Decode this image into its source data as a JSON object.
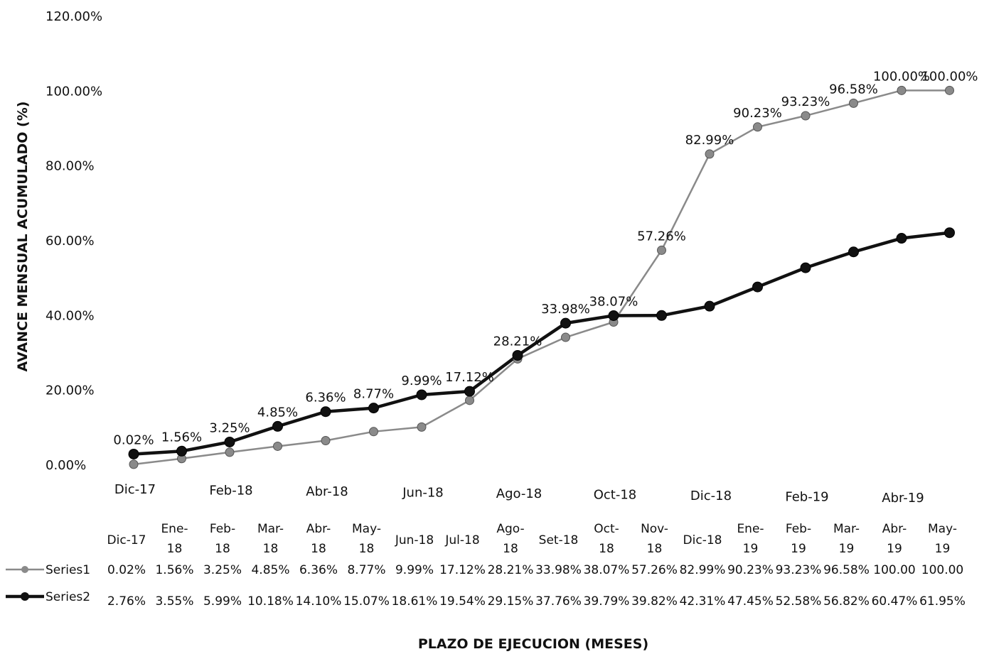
{
  "chart_data": {
    "type": "line",
    "ylabel": "AVANCE MENSUAL ACUMULADO (%)",
    "xlabel": "PLAZO DE EJECUCION (MESES)",
    "ylim": [
      0,
      120
    ],
    "y_ticks": [
      "0.00%",
      "20.00%",
      "40.00%",
      "60.00%",
      "80.00%",
      "100.00%",
      "120.00%"
    ],
    "x_tick_labels": [
      "Dic-17",
      "Feb-18",
      "Abr-18",
      "Jun-18",
      "Ago-18",
      "Oct-18",
      "Dic-18",
      "Feb-19",
      "Abr-19"
    ],
    "categories": [
      "Dic-17",
      "Ene-18",
      "Feb-18",
      "Mar-18",
      "Abr-18",
      "May-18",
      "Jun-18",
      "Jul-18",
      "Ago-18",
      "Set-18",
      "Oct-18",
      "Nov-18",
      "Dic-18",
      "Ene-19",
      "Feb-19",
      "Mar-19",
      "Abr-19",
      "May-19"
    ],
    "series": [
      {
        "name": "Series1",
        "values": [
          0.02,
          1.56,
          3.25,
          4.85,
          6.36,
          8.77,
          9.99,
          17.12,
          28.21,
          33.98,
          38.07,
          57.26,
          82.99,
          90.23,
          93.23,
          96.58,
          100.0,
          100.0
        ],
        "labels": [
          "0.02%",
          "1.56%",
          "3.25%",
          "4.85%",
          "6.36%",
          "8.77%",
          "9.99%",
          "17.12%",
          "28.21%",
          "33.98%",
          "38.07%",
          "57.26%",
          "82.99%",
          "90.23%",
          "93.23%",
          "96.58%",
          "100.00%",
          "100.00%"
        ],
        "table_values": [
          "0.02%",
          "1.56%",
          "3.25%",
          "4.85%",
          "6.36%",
          "8.77%",
          "9.99%",
          "17.12%",
          "28.21%",
          "33.98%",
          "38.07%",
          "57.26%",
          "82.99%",
          "90.23%",
          "93.23%",
          "96.58%",
          "100.00",
          "100.00"
        ],
        "color": "#8a8a8a"
      },
      {
        "name": "Series2",
        "values": [
          2.76,
          3.55,
          5.99,
          10.18,
          14.1,
          15.07,
          18.61,
          19.54,
          29.15,
          37.76,
          39.79,
          39.82,
          42.31,
          47.45,
          52.58,
          56.82,
          60.47,
          61.95
        ],
        "table_values": [
          "2.76%",
          "3.55%",
          "5.99%",
          "10.18%",
          "14.10%",
          "15.07%",
          "18.61%",
          "19.54%",
          "29.15%",
          "37.76%",
          "39.79%",
          "39.82%",
          "42.31%",
          "47.45%",
          "52.58%",
          "56.82%",
          "60.47%",
          "61.95%"
        ],
        "color": "#111111"
      }
    ],
    "table_headers": [
      [
        "Dic-17"
      ],
      [
        "Ene-",
        "18"
      ],
      [
        "Feb-",
        "18"
      ],
      [
        "Mar-",
        "18"
      ],
      [
        "Abr-",
        "18"
      ],
      [
        "May-",
        "18"
      ],
      [
        "Jun-18"
      ],
      [
        "Jul-18"
      ],
      [
        "Ago-",
        "18"
      ],
      [
        "Set-18"
      ],
      [
        "Oct-",
        "18"
      ],
      [
        "Nov-",
        "18"
      ],
      [
        "Dic-18"
      ],
      [
        "Ene-",
        "19"
      ],
      [
        "Feb-",
        "19"
      ],
      [
        "Mar-",
        "19"
      ],
      [
        "Abr-",
        "19"
      ],
      [
        "May-",
        "19"
      ]
    ],
    "grid": false,
    "legend": "data-table-bottom"
  }
}
